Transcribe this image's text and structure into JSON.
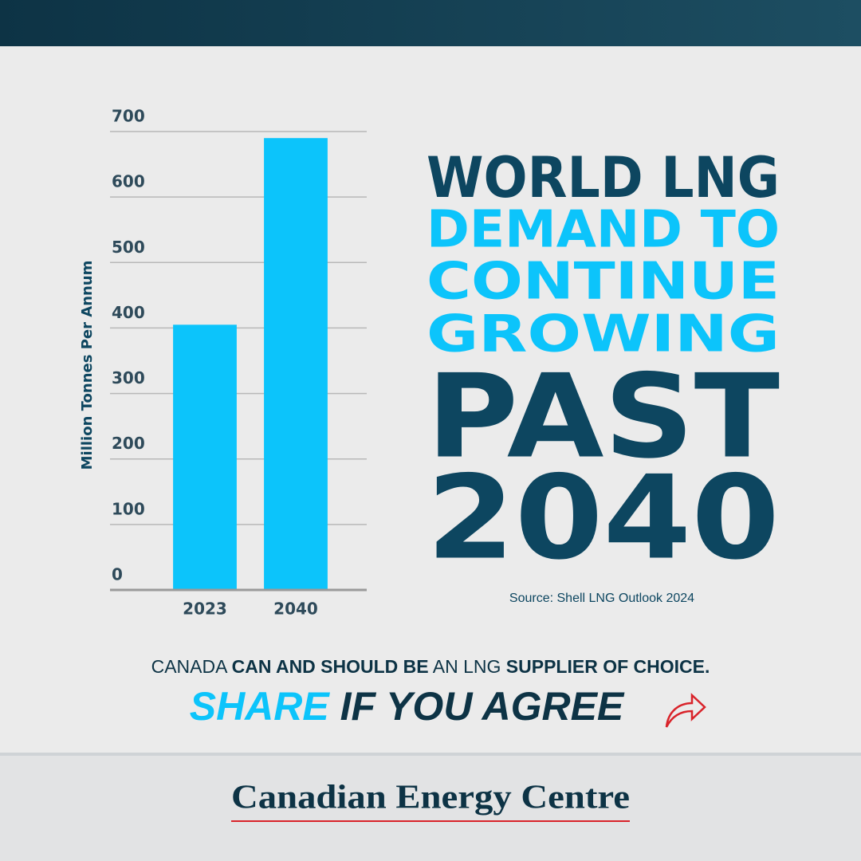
{
  "chart_data": {
    "type": "bar",
    "y_label": "Million Tonnes Per Annum",
    "categories": [
      "2023",
      "2040"
    ],
    "values": [
      405,
      690
    ],
    "color": "#0cc4fb",
    "ylim": [
      0,
      700
    ],
    "yticks": [
      0,
      100,
      200,
      300,
      400,
      500,
      600,
      700
    ],
    "grid": true
  },
  "headline": [
    "WORLD LNG",
    "DEMAND TO",
    "CONTINUE",
    "GROWING",
    "PAST",
    "2040"
  ],
  "source": "Source: Shell LNG Outlook 2024",
  "tagline": [
    "CANADA",
    "CAN AND SHOULD BE",
    "AN LNG",
    "SUPPLIER OF CHOICE."
  ],
  "cta": [
    "SHARE",
    "IF YOU AGREE"
  ],
  "brand": "Canadian Energy Centre"
}
